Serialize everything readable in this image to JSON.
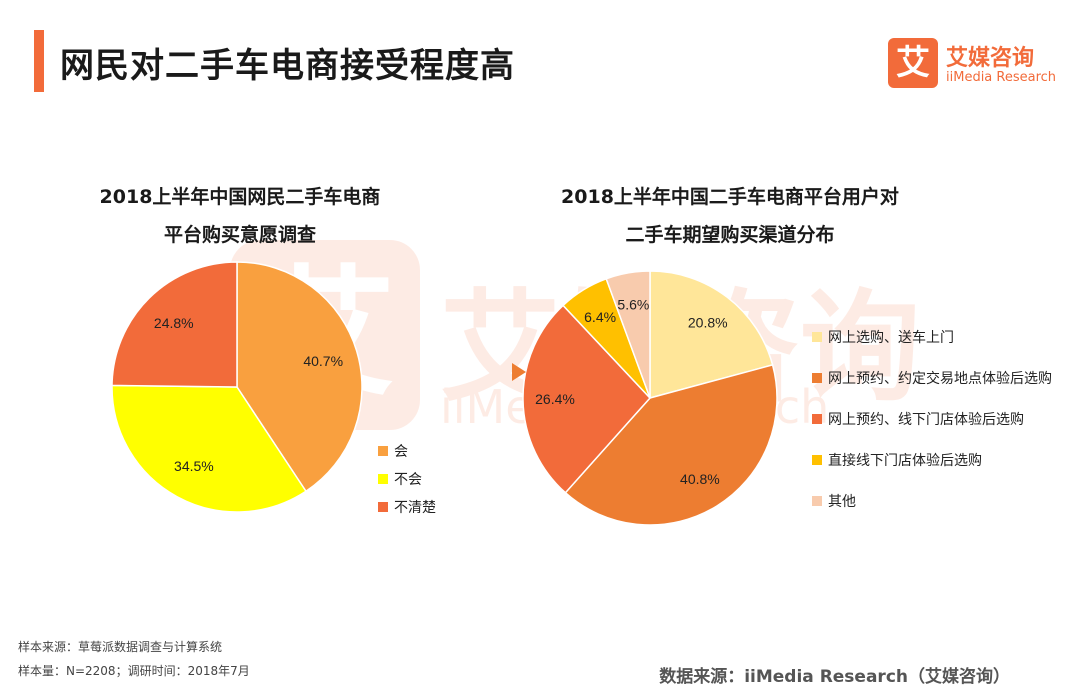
{
  "header": {
    "title": "网民对二手车电商接受程度高",
    "logo_cn": "艾媒咨询",
    "logo_en": "iiMedia Research",
    "logo_mark": "艾"
  },
  "chart_data": [
    {
      "type": "pie",
      "title_line1": "2018上半年中国网民二手车电商",
      "title_line2": "平台购买意愿调查",
      "categories": [
        "会",
        "不会",
        "不清楚"
      ],
      "values": [
        40.7,
        34.5,
        24.8
      ],
      "labels": [
        "40.7%",
        "34.5%",
        "24.8%"
      ],
      "colors": [
        "#f9a03f",
        "#ffff00",
        "#f26b3a"
      ],
      "legend": "right"
    },
    {
      "type": "pie",
      "title_line1": "2018上半年中国二手车电商平台用户对",
      "title_line2": "二手车期望购买渠道分布",
      "categories": [
        "网上选购、送车上门",
        "网上预约、约定交易地点体验后选购",
        "网上预约、线下门店体验后选购",
        "直接线下门店体验后选购",
        "其他"
      ],
      "values": [
        20.8,
        40.8,
        26.4,
        6.4,
        5.6
      ],
      "labels": [
        "20.8%",
        "40.8%",
        "26.4%",
        "6.4%",
        "5.6%"
      ],
      "colors": [
        "#ffe699",
        "#ed7d31",
        "#f26b3a",
        "#ffc000",
        "#f8cbad"
      ],
      "legend": "right"
    }
  ],
  "footer": {
    "sample_source": "样本来源：草莓派数据调查与计算系统",
    "sample_size": "样本量：N=2208；调研时间：2018年7月",
    "data_source": "数据来源：iiMedia Research（艾媒咨询）"
  },
  "watermark": {
    "mark": "艾",
    "cn": "艾媒咨询",
    "en": "iiMedia Research"
  }
}
